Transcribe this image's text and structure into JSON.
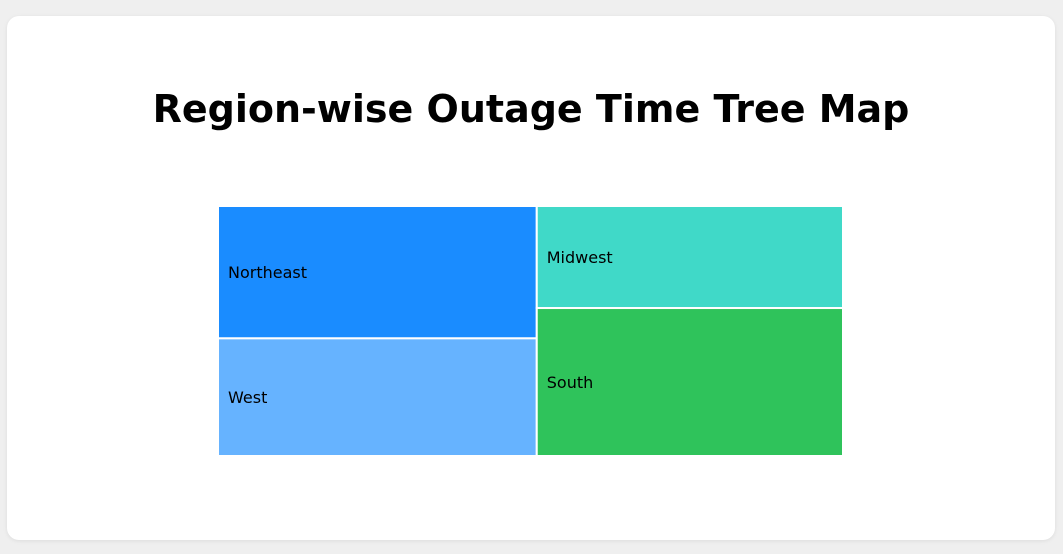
{
  "title": "Region-wise Outage Time Tree Map",
  "chart_data": {
    "type": "treemap",
    "title": "Region-wise Outage Time Tree Map",
    "items": [
      {
        "label": "Northeast",
        "value": 27,
        "color": "#1a8cff"
      },
      {
        "label": "West",
        "value": 24,
        "color": "#66b3ff"
      },
      {
        "label": "Midwest",
        "value": 20,
        "color": "#40d9c8"
      },
      {
        "label": "South",
        "value": 29,
        "color": "#2fc35b"
      }
    ]
  }
}
